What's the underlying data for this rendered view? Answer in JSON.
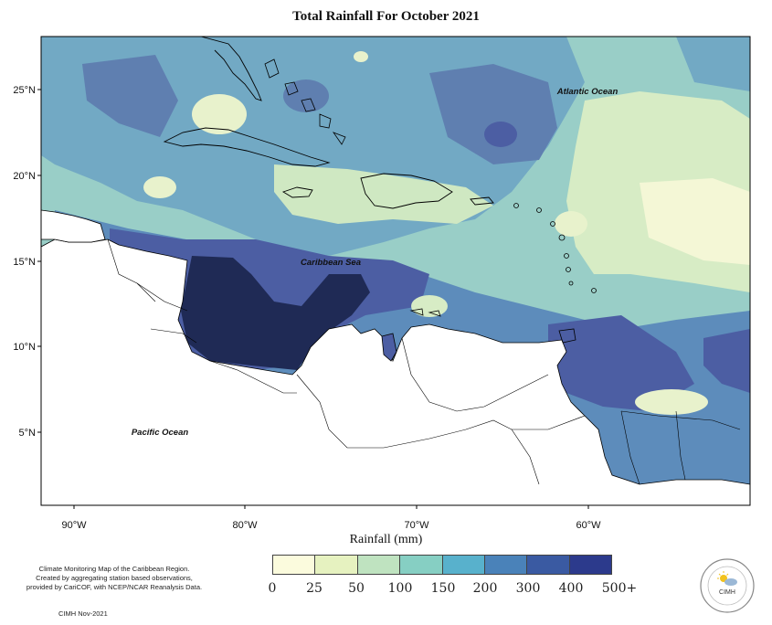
{
  "title": "Total Rainfall For October 2021",
  "map": {
    "labels": {
      "atlantic": "Atlantic Ocean",
      "caribbean": "Caribbean Sea",
      "pacific": "Pacific Ocean"
    },
    "lat_ticks": [
      "25°N",
      "20°N",
      "15°N",
      "10°N",
      "5°N"
    ],
    "lon_ticks": [
      "90°W",
      "80°W",
      "70°W",
      "60°W"
    ]
  },
  "colorbar": {
    "axis_label": "Rainfall (mm)",
    "tick_labels": [
      "0",
      "25",
      "50",
      "100",
      "150",
      "200",
      "300",
      "400",
      "500+"
    ],
    "colors": [
      "#fbfbdd",
      "#e6f2c0",
      "#bfe3c0",
      "#86cfc3",
      "#58b1cc",
      "#4a82b9",
      "#3a5aa2",
      "#2c3a8c",
      "#1c2558"
    ]
  },
  "footer": {
    "credit_line1": "Climate Monitoring Map of the Caribbean Region.",
    "credit_line2": "Created by aggregating station based observations,",
    "credit_line3": "provided by CariCOF, with NCEP/NCAR Reanalysis Data.",
    "stamp": "CIMH Nov-2021"
  },
  "logo": {
    "text": "CIMH",
    "icon": "sun-cloud-icon"
  }
}
